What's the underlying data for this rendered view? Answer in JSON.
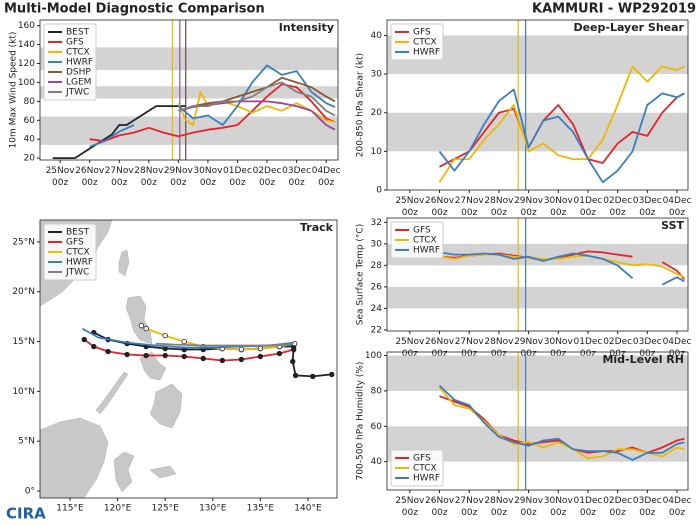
{
  "header": {
    "title": "Multi-Model Diagnostic Comparison",
    "storm": "KAMMURI - WP292019"
  },
  "logo": "CIRA",
  "chart_data": [
    {
      "type": "line",
      "title": "Intensity",
      "y_label": "10m Max Wind Speed (kt)",
      "xlim": [
        -0.68,
        9.4
      ],
      "ylim": [
        18,
        166
      ],
      "yticks": [
        20,
        40,
        60,
        80,
        100,
        120,
        140,
        160
      ],
      "xticks": [
        {
          "value": 0,
          "label": "25Nov 00z"
        },
        {
          "value": 1,
          "label": "26Nov 00z"
        },
        {
          "value": 2,
          "label": "27Nov 00z"
        },
        {
          "value": 3,
          "label": "28Nov 00z"
        },
        {
          "value": 4,
          "label": "29Nov 00z"
        },
        {
          "value": 5,
          "label": "30Nov 00z"
        },
        {
          "value": 6,
          "label": "01Dec 00z"
        },
        {
          "value": 7,
          "label": "02Dec 00z"
        },
        {
          "value": 8,
          "label": "03Dec 00z"
        },
        {
          "value": 9,
          "label": "04Dec 00z"
        }
      ],
      "bands": [
        [
          34,
          64
        ],
        [
          83,
          96
        ],
        [
          113,
          137
        ]
      ],
      "band_color": "#d3d3d3",
      "legend": "upper left",
      "vlines": [
        {
          "x": 3.8,
          "color": "#f0b800"
        },
        {
          "x": 4.05,
          "color": "#8a5a9a"
        },
        {
          "x": 4.25,
          "color": "#6b4a3a"
        }
      ],
      "series": [
        {
          "name": "BEST",
          "color": "#222222",
          "x": [
            -0.25,
            0,
            0.25,
            0.5,
            0.75,
            1,
            1.25,
            1.5,
            1.75,
            2,
            2.25,
            2.5,
            2.75,
            3,
            3.25,
            3.5,
            3.75,
            4,
            4.25
          ],
          "values": [
            20,
            20,
            20,
            20,
            25,
            30,
            35,
            40,
            45,
            55,
            55,
            60,
            65,
            70,
            75,
            75,
            75,
            75,
            75
          ]
        },
        {
          "name": "GFS",
          "color": "#e8212a",
          "x": [
            1,
            1.5,
            2,
            2.5,
            3,
            3.5,
            4,
            4.5,
            5,
            5.5,
            6,
            6.5,
            7,
            7.5,
            8,
            8.5,
            9,
            9.3
          ],
          "values": [
            40,
            38,
            44,
            47,
            52,
            47,
            43,
            47,
            50,
            52,
            55,
            70,
            85,
            98,
            95,
            80,
            62,
            58
          ]
        },
        {
          "name": "CTCX",
          "color": "#f0b800",
          "x": [
            4,
            4.25,
            4.5,
            4.75,
            5,
            5.5,
            6,
            6.5,
            7,
            7.5,
            8,
            8.5,
            9,
            9.3
          ],
          "values": [
            78,
            60,
            55,
            90,
            75,
            80,
            75,
            68,
            75,
            70,
            78,
            70,
            60,
            58
          ]
        },
        {
          "name": "HWRF",
          "color": "#3a7ec2",
          "x": [
            1,
            1.5,
            2,
            2.5,
            3,
            4,
            4.5,
            5,
            5.5,
            6,
            6.5,
            7,
            7.5,
            8,
            8.5,
            9,
            9.3
          ],
          "values": [
            32,
            38,
            48,
            55,
            null,
            75,
            62,
            65,
            55,
            75,
            100,
            118,
            108,
            112,
            90,
            78,
            74
          ]
        },
        {
          "name": "DSHP",
          "color": "#8b5a2b",
          "x": [
            4,
            4.5,
            5,
            5.5,
            6,
            6.5,
            7,
            7.5,
            8,
            8.5,
            9,
            9.3
          ],
          "values": [
            70,
            75,
            78,
            80,
            85,
            90,
            95,
            105,
            100,
            95,
            85,
            80
          ]
        },
        {
          "name": "LGEM",
          "color": "#a040a0",
          "x": [
            4,
            4.5,
            5,
            5.5,
            6,
            6.5,
            7,
            7.5,
            8,
            8.5,
            9,
            9.3
          ],
          "values": [
            70,
            74,
            76,
            78,
            80,
            80,
            80,
            78,
            75,
            70,
            55,
            50
          ]
        },
        {
          "name": "JTWC",
          "color": "#808080",
          "x": [
            4,
            4.5,
            5,
            5.5,
            6,
            6.5,
            7,
            7.5,
            8,
            8.5,
            9,
            9.3
          ],
          "values": [
            70,
            75,
            75,
            80,
            80,
            85,
            95,
            100,
            90,
            85,
            70,
            65
          ]
        }
      ]
    },
    {
      "type": "line",
      "title": "Track",
      "xlim": [
        111.85,
        143.05
      ],
      "ylim": [
        -0.7,
        27.2
      ],
      "xticks": [
        {
          "value": 115,
          "label": "115°E"
        },
        {
          "value": 120,
          "label": "120°E"
        },
        {
          "value": 125,
          "label": "125°E"
        },
        {
          "value": 130,
          "label": "130°E"
        },
        {
          "value": 135,
          "label": "135°E"
        },
        {
          "value": 140,
          "label": "140°E"
        }
      ],
      "yticks": [
        {
          "value": 0,
          "label": "0°"
        },
        {
          "value": 5,
          "label": "5°N"
        },
        {
          "value": 10,
          "label": "10°N"
        },
        {
          "value": 15,
          "label": "15°N"
        },
        {
          "value": 20,
          "label": "20°N"
        },
        {
          "value": 25,
          "label": "25°N"
        }
      ],
      "legend": "upper left",
      "series": [
        {
          "name": "BEST",
          "color": "#222222",
          "marker_color": "#222222",
          "x": [
            142.5,
            140.5,
            138.7,
            138.4,
            138.5,
            137,
            135,
            133,
            131,
            129,
            127,
            125,
            123,
            121,
            119,
            117.5
          ],
          "values": [
            11.7,
            11.5,
            11.6,
            13.0,
            14.5,
            14.5,
            14.3,
            14.2,
            14.3,
            14.2,
            14.2,
            14.3,
            14.5,
            14.8,
            15.2,
            15.9
          ]
        },
        {
          "name": "GFS",
          "color": "#e8212a",
          "marker_color": "#222222",
          "x": [
            138.5,
            137,
            135,
            133,
            131,
            129,
            127,
            125,
            123,
            121,
            119,
            117.5,
            116.5
          ],
          "values": [
            14.2,
            13.8,
            13.5,
            13.2,
            13.1,
            13.3,
            13.5,
            13.6,
            13.6,
            13.7,
            14.0,
            14.5,
            15.2
          ]
        },
        {
          "name": "CTCX",
          "color": "#f0b800",
          "marker_color": "#ffffff",
          "x": [
            138.6,
            137,
            135,
            133,
            131,
            129,
            127,
            125,
            123,
            122.5
          ],
          "values": [
            14.8,
            14.5,
            14.3,
            14.2,
            14.3,
            14.5,
            15.0,
            15.6,
            16.3,
            16.6
          ]
        },
        {
          "name": "HWRF",
          "color": "#3a7ec2",
          "x": [
            138.5,
            136,
            133,
            130,
            127,
            124,
            121,
            118,
            116.3
          ],
          "values": [
            14.9,
            14.6,
            14.5,
            14.4,
            14.4,
            14.6,
            14.9,
            15.4,
            16.3
          ]
        },
        {
          "name": "JTWC",
          "color": "#808080",
          "x": [
            138.4,
            135,
            132,
            129,
            126,
            124
          ],
          "values": [
            14.7,
            14.6,
            14.6,
            14.6,
            14.7,
            14.8
          ]
        }
      ]
    },
    {
      "type": "line",
      "title": "Deep-Layer Shear",
      "y_label": "200-850 hPa Shear (kt)",
      "xlim": [
        -0.77,
        9.37
      ],
      "ylim": [
        0,
        44
      ],
      "yticks": [
        0,
        10,
        20,
        30,
        40
      ],
      "xticks": [
        {
          "value": 0,
          "label": "25Nov 00z"
        },
        {
          "value": 1,
          "label": "26Nov 00z"
        },
        {
          "value": 2,
          "label": "27Nov 00z"
        },
        {
          "value": 3,
          "label": "28Nov 00z"
        },
        {
          "value": 4,
          "label": "29Nov 00z"
        },
        {
          "value": 5,
          "label": "30Nov 00z"
        },
        {
          "value": 6,
          "label": "01Dec 00z"
        },
        {
          "value": 7,
          "label": "02Dec 00z"
        },
        {
          "value": 8,
          "label": "03Dec 00z"
        },
        {
          "value": 9,
          "label": "04Dec 00z"
        }
      ],
      "bands": [
        [
          10,
          20
        ],
        [
          30,
          40
        ]
      ],
      "band_color": "#d3d3d3",
      "legend": "upper left",
      "vlines": [
        {
          "x": 3.65,
          "color": "#f0b800"
        },
        {
          "x": 3.9,
          "color": "#3a7ec2"
        }
      ],
      "x": [
        1,
        1.5,
        2,
        2.5,
        3,
        3.5,
        4,
        4.5,
        5,
        5.5,
        6,
        6.5,
        7,
        7.5,
        8,
        8.5,
        9,
        9.25
      ],
      "series": [
        {
          "name": "GFS",
          "color": "#e8212a",
          "values": [
            6,
            8,
            10,
            15,
            20,
            21,
            11,
            18,
            22,
            17,
            8,
            7,
            12,
            15,
            14,
            20,
            24,
            25
          ]
        },
        {
          "name": "CTCX",
          "color": "#f0b800",
          "values": [
            2,
            8,
            8,
            13,
            17,
            22,
            10,
            12,
            9,
            8,
            8,
            13,
            22,
            32,
            28,
            32,
            31,
            32
          ]
        },
        {
          "name": "HWRF",
          "color": "#3a7ec2",
          "values": [
            10,
            5,
            10,
            17,
            23,
            26,
            11,
            18,
            19,
            15,
            8,
            2,
            5,
            10,
            22,
            25,
            24,
            25
          ]
        }
      ]
    },
    {
      "type": "line",
      "title": "SST",
      "y_label": "Sea Surface Temp (°C)",
      "xlim": [
        -0.77,
        9.37
      ],
      "ylim": [
        21.9,
        32.4
      ],
      "yticks": [
        22,
        24,
        26,
        28,
        30,
        32
      ],
      "xticks": [
        {
          "value": 0,
          "label": "25Nov 00z"
        },
        {
          "value": 1,
          "label": "26Nov 00z"
        },
        {
          "value": 2,
          "label": "27Nov 00z"
        },
        {
          "value": 3,
          "label": "28Nov 00z"
        },
        {
          "value": 4,
          "label": "29Nov 00z"
        },
        {
          "value": 5,
          "label": "30Nov 00z"
        },
        {
          "value": 6,
          "label": "01Dec 00z"
        },
        {
          "value": 7,
          "label": "02Dec 00z"
        },
        {
          "value": 8,
          "label": "03Dec 00z"
        },
        {
          "value": 9,
          "label": "04Dec 00z"
        }
      ],
      "bands": [
        [
          24,
          26
        ],
        [
          28,
          30
        ]
      ],
      "band_color": "#d3d3d3",
      "legend": "upper left",
      "vlines": [
        {
          "x": 3.65,
          "color": "#f0b800"
        },
        {
          "x": 3.9,
          "color": "#3a7ec2"
        }
      ],
      "x": [
        1,
        1.5,
        2,
        2.5,
        3,
        3.5,
        4,
        4.5,
        5,
        5.5,
        6,
        6.5,
        7,
        7.5,
        8,
        8.5,
        9,
        9.25
      ],
      "series": [
        {
          "name": "GFS",
          "color": "#e8212a",
          "values": [
            28.8,
            28.7,
            28.9,
            29.0,
            29.1,
            28.9,
            28.7,
            28.5,
            28.7,
            29.0,
            29.3,
            29.2,
            29.0,
            28.8,
            null,
            28.3,
            27.5,
            26.7
          ]
        },
        {
          "name": "CTCX",
          "color": "#f0b800",
          "values": [
            28.8,
            28.6,
            28.9,
            29.0,
            29.0,
            28.8,
            28.7,
            28.6,
            28.6,
            28.8,
            28.9,
            28.6,
            28.3,
            28.0,
            28.1,
            27.9,
            27.2,
            26.9
          ]
        },
        {
          "name": "HWRF",
          "color": "#3a7ec2",
          "values": [
            29.2,
            29.0,
            29.0,
            29.1,
            29.0,
            28.6,
            28.8,
            28.4,
            28.8,
            29.1,
            28.9,
            28.6,
            28.0,
            26.8,
            null,
            26.2,
            26.9,
            26.5
          ]
        }
      ]
    },
    {
      "type": "line",
      "title": "Mid-Level RH",
      "y_label": "700-500 hPa Humidity (%)",
      "xlim": [
        -0.77,
        9.37
      ],
      "ylim": [
        24,
        102
      ],
      "yticks": [
        40,
        60,
        80,
        100
      ],
      "xticks": [
        {
          "value": 0,
          "label": "25Nov 00z"
        },
        {
          "value": 1,
          "label": "26Nov 00z"
        },
        {
          "value": 2,
          "label": "27Nov 00z"
        },
        {
          "value": 3,
          "label": "28Nov 00z"
        },
        {
          "value": 4,
          "label": "29Nov 00z"
        },
        {
          "value": 5,
          "label": "30Nov 00z"
        },
        {
          "value": 6,
          "label": "01Dec 00z"
        },
        {
          "value": 7,
          "label": "02Dec 00z"
        },
        {
          "value": 8,
          "label": "03Dec 00z"
        },
        {
          "value": 9,
          "label": "04Dec 00z"
        }
      ],
      "bands": [
        [
          40,
          60
        ],
        [
          80,
          100
        ]
      ],
      "band_color": "#d3d3d3",
      "legend": "lower left",
      "vlines": [
        {
          "x": 3.65,
          "color": "#f0b800"
        },
        {
          "x": 3.9,
          "color": "#3a7ec2"
        }
      ],
      "x": [
        1,
        1.5,
        2,
        2.5,
        3,
        3.5,
        4,
        4.5,
        5,
        5.5,
        6,
        6.5,
        7,
        7.5,
        8,
        8.5,
        9,
        9.25
      ],
      "series": [
        {
          "name": "GFS",
          "color": "#e8212a",
          "values": [
            77,
            74,
            71,
            64,
            55,
            52,
            50,
            51,
            52,
            47,
            45,
            46,
            46,
            48,
            45,
            48,
            52,
            53
          ]
        },
        {
          "name": "CTCX",
          "color": "#f0b800",
          "values": [
            82,
            72,
            70,
            63,
            55,
            50,
            51,
            48,
            51,
            47,
            42,
            43,
            47,
            47,
            45,
            43,
            48,
            47
          ]
        },
        {
          "name": "HWRF",
          "color": "#3a7ec2",
          "values": [
            83,
            75,
            72,
            62,
            54,
            51,
            49,
            52,
            53,
            47,
            46,
            46,
            45,
            41,
            45,
            45,
            50,
            51
          ]
        }
      ]
    }
  ]
}
